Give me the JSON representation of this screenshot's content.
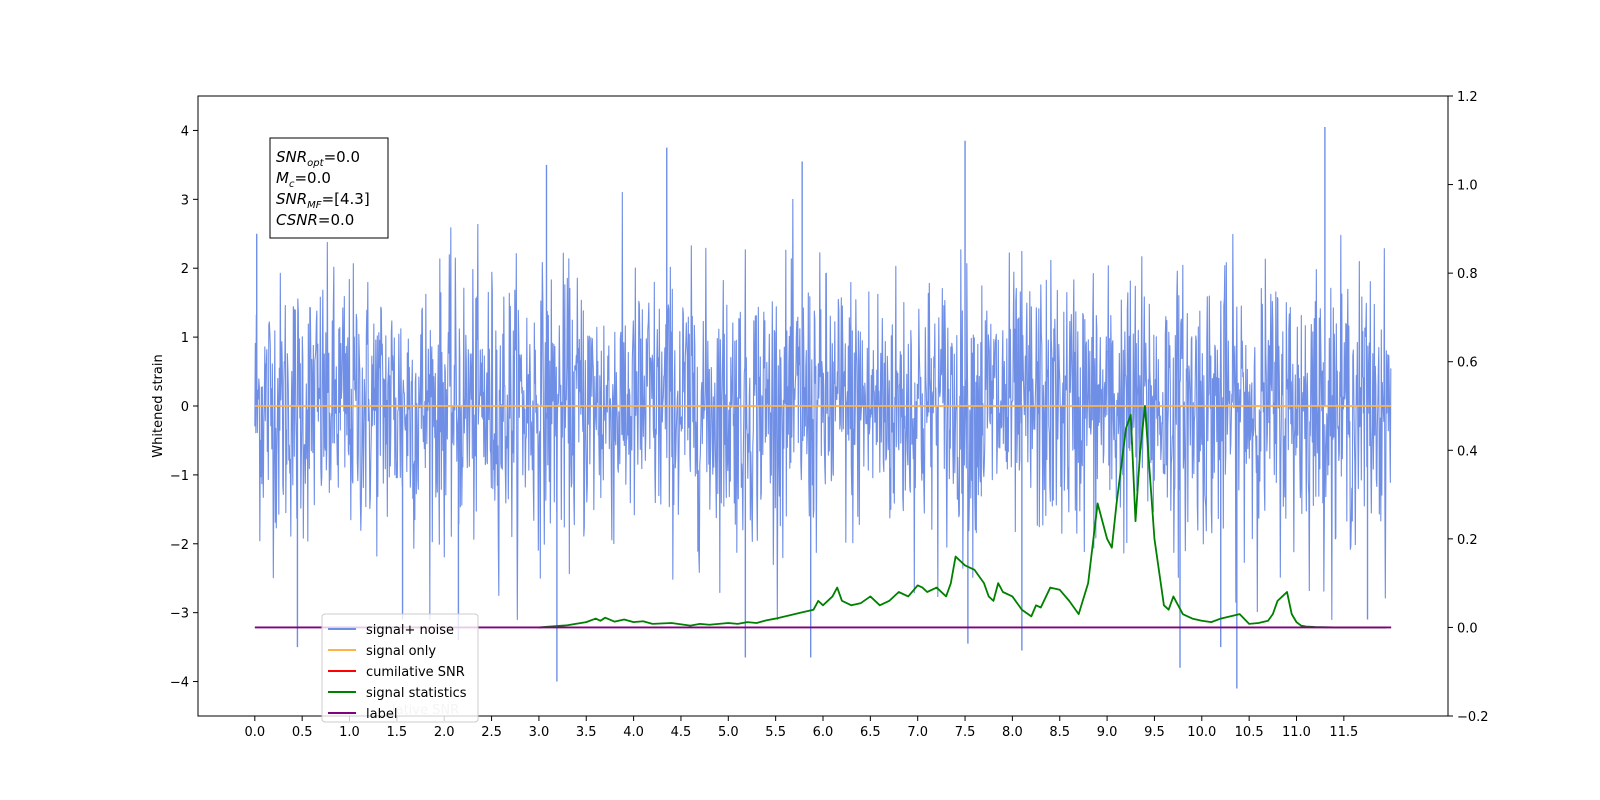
{
  "chart_data": {
    "type": "line",
    "title": "",
    "xlabel": "",
    "ylabel": "Whitened strain",
    "y2label": "",
    "xlim": [
      -0.6,
      12.6
    ],
    "ylim": [
      -4.5,
      4.5
    ],
    "y2lim": [
      -0.2,
      1.2
    ],
    "x_ticks": [
      "0.0",
      "0.5",
      "1.0",
      "1.5",
      "2.0",
      "2.5",
      "3.0",
      "3.5",
      "4.0",
      "4.5",
      "5.0",
      "5.5",
      "6.0",
      "6.5",
      "7.0",
      "7.5",
      "8.0",
      "8.5",
      "9.0",
      "9.5",
      "10.0",
      "10.5",
      "11.0",
      "11.5"
    ],
    "y_ticks": [
      "4",
      "3",
      "2",
      "1",
      "0",
      "−1",
      "−2",
      "−3",
      "−4"
    ],
    "y2_ticks": [
      "1.2",
      "1.0",
      "0.8",
      "0.6",
      "0.4",
      "0.2",
      "0.0",
      "−0.2"
    ],
    "noise": {
      "x_start": 0.0,
      "x_end": 12.0,
      "band_upper": [
        0.0,
        4.1
      ],
      "band_lower": [
        -4.1,
        0.0
      ],
      "notable_spikes": [
        {
          "x": 0.02,
          "y": 2.5
        },
        {
          "x": 0.45,
          "y": -3.5
        },
        {
          "x": 1.56,
          "y": -3.1
        },
        {
          "x": 2.15,
          "y": -3.4
        },
        {
          "x": 3.08,
          "y": 3.5
        },
        {
          "x": 3.19,
          "y": -4.0
        },
        {
          "x": 4.35,
          "y": 3.75
        },
        {
          "x": 5.18,
          "y": -3.65
        },
        {
          "x": 5.87,
          "y": -3.65
        },
        {
          "x": 5.78,
          "y": 3.55
        },
        {
          "x": 7.5,
          "y": 3.85
        },
        {
          "x": 7.53,
          "y": -3.45
        },
        {
          "x": 8.1,
          "y": -3.55
        },
        {
          "x": 9.77,
          "y": -3.8
        },
        {
          "x": 10.2,
          "y": -3.5
        },
        {
          "x": 10.37,
          "y": -4.1
        },
        {
          "x": 11.3,
          "y": 4.05
        },
        {
          "x": 11.75,
          "y": -3.1
        }
      ]
    },
    "series": [
      {
        "name": "signal+ noise",
        "color": "#6f8ee6",
        "axis": "left",
        "rendered_as": "dense noise trace"
      },
      {
        "name": "signal only",
        "color": "#ffb347",
        "axis": "left",
        "x": [
          0.0,
          12.0
        ],
        "y": [
          0.0,
          0.0
        ]
      },
      {
        "name": "cumilative SNR",
        "color": "#ff0000",
        "axis": "right",
        "x": [],
        "y": []
      },
      {
        "name": "signal statistics",
        "color": "#008000",
        "axis": "right",
        "x": [
          3.0,
          3.3,
          3.5,
          3.6,
          3.65,
          3.7,
          3.8,
          3.9,
          4.0,
          4.1,
          4.2,
          4.4,
          4.6,
          4.7,
          4.8,
          5.0,
          5.1,
          5.2,
          5.3,
          5.4,
          5.5,
          5.6,
          5.7,
          5.8,
          5.9,
          5.95,
          6.0,
          6.1,
          6.15,
          6.2,
          6.3,
          6.4,
          6.5,
          6.6,
          6.7,
          6.8,
          6.9,
          7.0,
          7.05,
          7.1,
          7.2,
          7.3,
          7.35,
          7.4,
          7.5,
          7.6,
          7.7,
          7.75,
          7.8,
          7.85,
          7.9,
          8.0,
          8.1,
          8.2,
          8.25,
          8.3,
          8.4,
          8.5,
          8.6,
          8.7,
          8.8,
          8.9,
          9.0,
          9.05,
          9.1,
          9.2,
          9.25,
          9.3,
          9.35,
          9.4,
          9.45,
          9.5,
          9.6,
          9.65,
          9.7,
          9.8,
          9.9,
          10.0,
          10.1,
          10.2,
          10.3,
          10.4,
          10.5,
          10.6,
          10.7,
          10.75,
          10.8,
          10.85,
          10.9,
          10.95,
          11.0,
          11.05,
          11.1,
          11.2,
          11.4,
          11.6,
          11.8,
          11.95
        ],
        "y": [
          0.0,
          0.005,
          0.012,
          0.02,
          0.015,
          0.022,
          0.013,
          0.018,
          0.012,
          0.014,
          0.008,
          0.01,
          0.004,
          0.008,
          0.006,
          0.01,
          0.008,
          0.012,
          0.01,
          0.016,
          0.02,
          0.025,
          0.03,
          0.035,
          0.04,
          0.06,
          0.05,
          0.07,
          0.09,
          0.06,
          0.05,
          0.055,
          0.07,
          0.05,
          0.06,
          0.08,
          0.07,
          0.095,
          0.09,
          0.08,
          0.09,
          0.07,
          0.1,
          0.16,
          0.14,
          0.13,
          0.1,
          0.07,
          0.06,
          0.1,
          0.08,
          0.07,
          0.04,
          0.025,
          0.05,
          0.045,
          0.09,
          0.085,
          0.06,
          0.03,
          0.1,
          0.28,
          0.2,
          0.18,
          0.28,
          0.45,
          0.48,
          0.24,
          0.4,
          0.5,
          0.35,
          0.2,
          0.05,
          0.04,
          0.07,
          0.03,
          0.02,
          0.015,
          0.012,
          0.02,
          0.025,
          0.03,
          0.008,
          0.01,
          0.015,
          0.03,
          0.06,
          0.07,
          0.08,
          0.03,
          0.012,
          0.004,
          0.002,
          0.001,
          0.0,
          0.0,
          0.0,
          0.0
        ],
        "peak_note": ""
      },
      {
        "name": "label",
        "color": "#800080",
        "axis": "right",
        "x": [
          0.0,
          12.0
        ],
        "y": [
          0.0,
          0.0
        ]
      }
    ],
    "legend": {
      "placement": "lower-left",
      "entries": [
        {
          "label": "signal+ noise",
          "color": "#6f8ee6"
        },
        {
          "label": "signal only",
          "color": "#ffb347"
        },
        {
          "label": "cumilative SNR",
          "color": "#ff0000"
        },
        {
          "label": "signal statistics",
          "color": "#008000"
        },
        {
          "label": "label",
          "color": "#800080"
        }
      ],
      "occluded_text": "lative SNR"
    },
    "info_box": {
      "lines": [
        {
          "base": "SNR",
          "sub": "opt",
          "value": "=0.0"
        },
        {
          "base": "M",
          "sub": "c",
          "value": "=0.0"
        },
        {
          "base": "SNR",
          "sub": "MF",
          "value": "=[4.3]"
        },
        {
          "base": "CSNR",
          "sub": "",
          "value": "=0.0"
        }
      ]
    },
    "grid": false
  }
}
